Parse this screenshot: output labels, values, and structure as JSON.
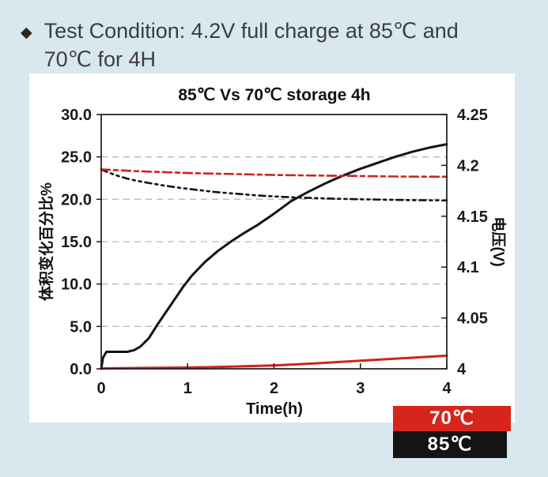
{
  "header": {
    "bullet": "◆",
    "line1": "Test Condition: 4.2V full charge at 85℃ and",
    "line2": "70℃ for 4H"
  },
  "chart_data": {
    "type": "line",
    "title": "85℃ Vs 70℃ storage 4h",
    "xlabel": "Time(h)",
    "left_ylabel": "体积变化百分比%",
    "right_ylabel": "电压(V)",
    "xlim": [
      0,
      4
    ],
    "left_ylim": [
      0,
      30
    ],
    "right_ylim": [
      4,
      4.25
    ],
    "grid": "horizontal dashed gray lines at left-axis multiples of 5",
    "legend_position": "bottom-right outside plot",
    "x_ticks": [
      {
        "value": 0,
        "label": "0"
      },
      {
        "value": 1,
        "label": "1"
      },
      {
        "value": 2,
        "label": "2"
      },
      {
        "value": 3,
        "label": "3"
      },
      {
        "value": 4,
        "label": "4"
      }
    ],
    "left_ticks": [
      {
        "value": 30,
        "label": "30.0"
      },
      {
        "value": 25,
        "label": "25.0"
      },
      {
        "value": 20,
        "label": "20.0"
      },
      {
        "value": 15,
        "label": "15.0"
      },
      {
        "value": 10,
        "label": "10.0"
      },
      {
        "value": 5,
        "label": "5.0"
      },
      {
        "value": 0,
        "label": "0.0"
      }
    ],
    "right_ticks": [
      {
        "value": 4.25,
        "label": "4.25"
      },
      {
        "value": 4.2,
        "label": "4.2"
      },
      {
        "value": 4.15,
        "label": "4.15"
      },
      {
        "value": 4.1,
        "label": "4.1"
      },
      {
        "value": 4.05,
        "label": "4.05"
      },
      {
        "value": 4.0,
        "label": "4"
      }
    ],
    "grid_values": [
      30,
      25,
      20,
      15,
      10,
      5
    ],
    "series": [
      {
        "name": "85c-volume-change-pct",
        "legend": "85℃",
        "axis": "left",
        "color": "#141414",
        "width": 3,
        "dash": "",
        "x": [
          0,
          0.02,
          0.06,
          0.15,
          0.3,
          0.38,
          0.45,
          0.55,
          0.65,
          0.75,
          0.85,
          0.95,
          1.05,
          1.2,
          1.35,
          1.5,
          1.65,
          1.8,
          2.0,
          2.2,
          2.4,
          2.6,
          2.8,
          3.0,
          3.2,
          3.4,
          3.6,
          3.8,
          4.0
        ],
        "y": [
          0,
          1.3,
          2.0,
          2.0,
          2.0,
          2.2,
          2.6,
          3.6,
          5.2,
          6.7,
          8.2,
          9.7,
          11.0,
          12.6,
          13.9,
          15.0,
          16.0,
          16.9,
          18.3,
          19.8,
          20.9,
          21.9,
          22.8,
          23.6,
          24.3,
          25.0,
          25.6,
          26.1,
          26.5
        ]
      },
      {
        "name": "70c-volume-change-pct",
        "legend": "70℃",
        "axis": "left",
        "color": "#cf241d",
        "width": 3,
        "dash": "",
        "x": [
          0,
          0.5,
          1.0,
          1.5,
          2.0,
          2.5,
          3.0,
          3.5,
          4.0
        ],
        "y": [
          0.05,
          0.1,
          0.15,
          0.25,
          0.4,
          0.65,
          0.95,
          1.25,
          1.55
        ]
      },
      {
        "name": "85c-voltage-v",
        "legend": "85℃",
        "axis": "right",
        "color": "#141414",
        "width": 2.6,
        "dash": "8 5 3 5 3 5",
        "x": [
          0,
          0.1,
          0.2,
          0.3,
          0.4,
          0.5,
          0.7,
          0.9,
          1.1,
          1.3,
          1.5,
          1.8,
          2.1,
          2.4,
          2.7,
          3.0,
          3.3,
          3.6,
          4.0
        ],
        "y": [
          4.196,
          4.1925,
          4.1895,
          4.187,
          4.185,
          4.1835,
          4.1805,
          4.178,
          4.176,
          4.174,
          4.1725,
          4.1705,
          4.169,
          4.168,
          4.1672,
          4.1667,
          4.1662,
          4.1658,
          4.1655
        ]
      },
      {
        "name": "70c-voltage-v",
        "legend": "70℃",
        "axis": "right",
        "color": "#cf241d",
        "width": 2.6,
        "dash": "11 5 5 5",
        "x": [
          0,
          0.5,
          1.0,
          1.5,
          2.0,
          2.5,
          3.0,
          3.5,
          4.0
        ],
        "y": [
          4.196,
          4.194,
          4.1925,
          4.1915,
          4.1905,
          4.19,
          4.1895,
          4.189,
          4.1888
        ]
      }
    ]
  },
  "legend": {
    "entries": [
      {
        "label": "70℃",
        "color": "#d8251c"
      },
      {
        "label": "85℃",
        "color": "#141414"
      }
    ]
  },
  "colors": {
    "background": "#d9e8ee",
    "panel": "#ffffff",
    "grid": "#b9b9b9",
    "axis": "#1a1a1a"
  }
}
